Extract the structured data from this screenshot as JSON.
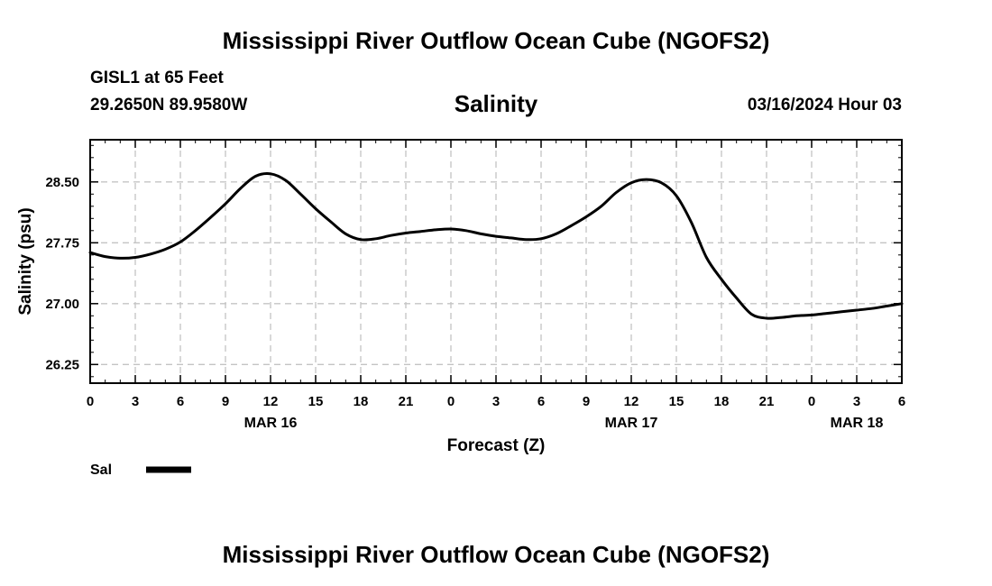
{
  "page": {
    "top_title": "Mississippi River Outflow Ocean Cube (NGOFS2)",
    "bottom_title": "Mississippi River Outflow Ocean Cube (NGOFS2)",
    "station_line": "GISL1 at 65 Feet",
    "coords_line": "29.2650N  89.9580W",
    "datetime": "03/16/2024 Hour 03"
  },
  "chart_data": {
    "type": "line",
    "title": "Salinity",
    "xlabel": "Forecast (Z)",
    "ylabel": "Salinity (psu)",
    "xlim": [
      0,
      54
    ],
    "ylim": [
      26.02,
      29.02
    ],
    "x_ticks": [
      0,
      3,
      6,
      9,
      12,
      15,
      18,
      21,
      24,
      27,
      30,
      33,
      36,
      39,
      42,
      45,
      48,
      51,
      54
    ],
    "x_tick_labels": [
      "0",
      "3",
      "6",
      "9",
      "12",
      "15",
      "18",
      "21",
      "0",
      "3",
      "6",
      "9",
      "12",
      "15",
      "18",
      "21",
      "0",
      "3",
      "6"
    ],
    "date_labels": [
      {
        "x": 12,
        "label": "MAR 16"
      },
      {
        "x": 36,
        "label": "MAR 17"
      },
      {
        "x": 51,
        "label": "MAR 18"
      }
    ],
    "y_ticks": [
      26.25,
      27.0,
      27.75,
      28.5
    ],
    "y_tick_labels": [
      "26.25",
      "27.00",
      "27.75",
      "28.50"
    ],
    "grid": true,
    "legend": [
      {
        "name": "Sal",
        "color": "#000000"
      }
    ],
    "series": [
      {
        "name": "Sal",
        "color": "#000000",
        "x": [
          0,
          1,
          2,
          3,
          4,
          5,
          6,
          7,
          8,
          9,
          10,
          11,
          12,
          13,
          14,
          15,
          16,
          17,
          18,
          19,
          20,
          21,
          22,
          23,
          24,
          25,
          26,
          27,
          28,
          29,
          30,
          31,
          32,
          33,
          34,
          35,
          36,
          37,
          38,
          39,
          40,
          41,
          42,
          43,
          44,
          45,
          46,
          47,
          48,
          49,
          50,
          51,
          52,
          53,
          54
        ],
        "values": [
          27.63,
          27.58,
          27.56,
          27.57,
          27.61,
          27.67,
          27.76,
          27.9,
          28.06,
          28.23,
          28.42,
          28.57,
          28.6,
          28.52,
          28.35,
          28.17,
          28.01,
          27.86,
          27.79,
          27.8,
          27.84,
          27.87,
          27.89,
          27.91,
          27.92,
          27.9,
          27.86,
          27.83,
          27.81,
          27.79,
          27.8,
          27.86,
          27.96,
          28.07,
          28.2,
          28.37,
          28.49,
          28.53,
          28.49,
          28.33,
          28.0,
          27.57,
          27.3,
          27.07,
          26.87,
          26.82,
          26.83,
          26.85,
          26.86,
          26.88,
          26.9,
          26.92,
          26.94,
          26.97,
          27.0
        ]
      }
    ]
  }
}
